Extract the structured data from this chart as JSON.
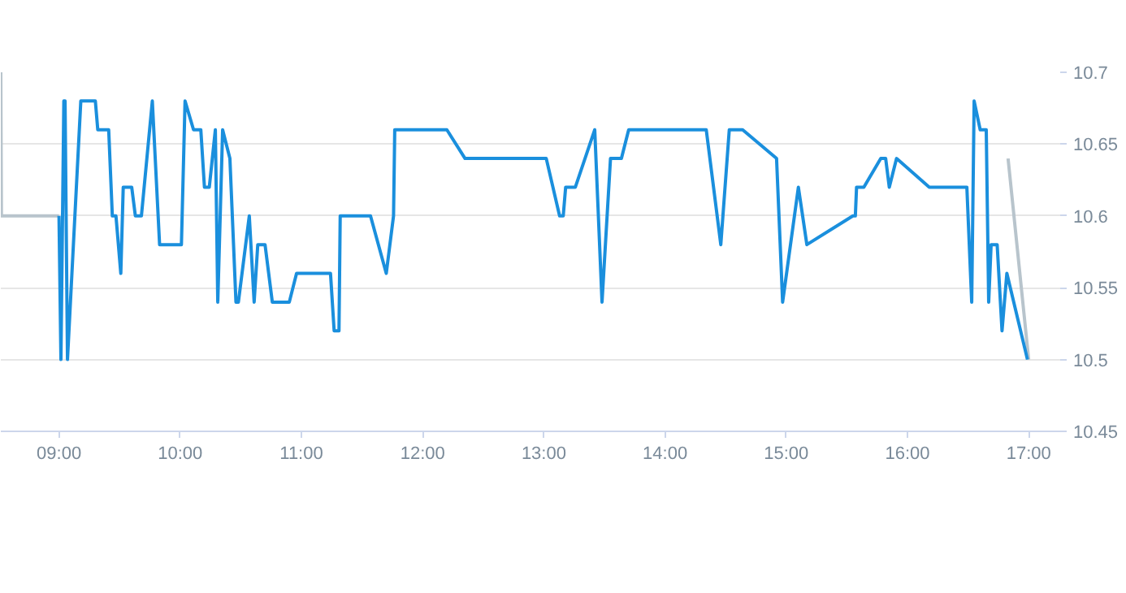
{
  "chart_data": {
    "type": "line",
    "xlim": [
      8.52,
      17.26
    ],
    "ylim": [
      10.45,
      10.7
    ],
    "xticks": [
      {
        "value": 9,
        "label": "09:00"
      },
      {
        "value": 10,
        "label": "10:00"
      },
      {
        "value": 11,
        "label": "11:00"
      },
      {
        "value": 12,
        "label": "12:00"
      },
      {
        "value": 13,
        "label": "13:00"
      },
      {
        "value": 14,
        "label": "14:00"
      },
      {
        "value": 15,
        "label": "15:00"
      },
      {
        "value": 16,
        "label": "16:00"
      },
      {
        "value": 17,
        "label": "17:00"
      }
    ],
    "yticks": [
      10.45,
      {
        "value": 10.5,
        "label": "10.5"
      },
      10.55,
      {
        "value": 10.6,
        "label": "10.6"
      },
      10.65,
      {
        "value": 10.7,
        "label": "10.7"
      }
    ],
    "grid": "y",
    "marker": "none",
    "line_style": "solid",
    "series": [
      {
        "color": "#b8c4cc",
        "x": [
          8.52,
          8.525,
          9.0,
          null,
          16.83,
          17.0
        ],
        "values": [
          10.7,
          10.6,
          10.6,
          null,
          10.64,
          10.5
        ]
      },
      {
        "color": "#1a8fdd",
        "x": [
          9.0,
          9.016,
          9.04,
          9.05,
          9.07,
          9.18,
          9.3,
          9.32,
          9.41,
          9.44,
          9.47,
          9.51,
          9.53,
          9.6,
          9.63,
          9.68,
          9.77,
          9.83,
          10.01,
          10.04,
          10.11,
          10.17,
          10.2,
          10.24,
          10.29,
          10.31,
          10.35,
          10.41,
          10.46,
          10.48,
          10.57,
          10.61,
          10.64,
          10.7,
          10.76,
          10.9,
          10.96,
          11.24,
          11.27,
          11.31,
          11.32,
          11.57,
          11.7,
          11.76,
          11.77,
          12.2,
          12.35,
          13.02,
          13.13,
          13.16,
          13.18,
          13.26,
          13.42,
          13.48,
          13.55,
          13.64,
          13.7,
          14.34,
          14.46,
          14.53,
          14.64,
          14.92,
          14.97,
          15.1,
          15.17,
          15.55,
          15.57,
          15.58,
          15.64,
          15.78,
          15.82,
          15.85,
          15.91,
          16.18,
          16.49,
          16.53,
          16.55,
          16.6,
          16.65,
          16.67,
          16.69,
          16.74,
          16.78,
          16.82,
          16.99
        ],
        "values": [
          10.6,
          10.5,
          10.68,
          10.68,
          10.5,
          10.68,
          10.68,
          10.66,
          10.66,
          10.6,
          10.6,
          10.56,
          10.62,
          10.62,
          10.6,
          10.6,
          10.68,
          10.58,
          10.58,
          10.68,
          10.66,
          10.66,
          10.62,
          10.62,
          10.66,
          10.54,
          10.66,
          10.64,
          10.54,
          10.54,
          10.6,
          10.54,
          10.58,
          10.58,
          10.54,
          10.54,
          10.56,
          10.56,
          10.52,
          10.52,
          10.6,
          10.6,
          10.56,
          10.6,
          10.66,
          10.66,
          10.64,
          10.64,
          10.6,
          10.6,
          10.62,
          10.62,
          10.66,
          10.54,
          10.64,
          10.64,
          10.66,
          10.66,
          10.58,
          10.66,
          10.66,
          10.64,
          10.54,
          10.62,
          10.58,
          10.6,
          10.6,
          10.62,
          10.62,
          10.64,
          10.64,
          10.62,
          10.64,
          10.62,
          10.62,
          10.54,
          10.68,
          10.66,
          10.66,
          10.54,
          10.58,
          10.58,
          10.52,
          10.56,
          10.5
        ]
      }
    ]
  }
}
